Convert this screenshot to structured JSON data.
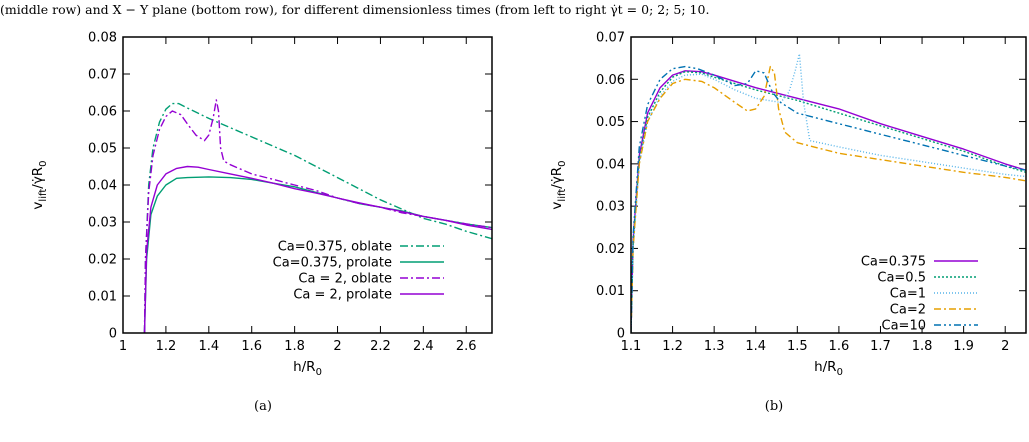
{
  "caption": "(middle row) and X − Y plane (bottom row), for different dimensionless times (from left to right γ̇t = 0; 2; 5; 10.",
  "chart_data": [
    {
      "type": "line",
      "panel_label": "(a)",
      "xlabel": "h/R",
      "xlabel_sub": "0",
      "ylabel_main": "v",
      "ylabel_sub": "lift",
      "ylabel_mid": "/γ̇R",
      "ylabel_sub2": "0",
      "xlim": [
        1.0,
        2.72
      ],
      "ylim": [
        0,
        0.08
      ],
      "xticks": [
        1,
        1.2,
        1.4,
        1.6,
        1.8,
        2,
        2.2,
        2.4,
        2.6
      ],
      "xtick_labels": [
        "1",
        "1.2",
        "1.4",
        "1.6",
        "1.8",
        "2",
        "2.2",
        "2.4",
        "2.6"
      ],
      "yticks": [
        0,
        0.01,
        0.02,
        0.03,
        0.04,
        0.05,
        0.06,
        0.07,
        0.08
      ],
      "ytick_labels": [
        "0",
        "0.01",
        "0.02",
        "0.03",
        "0.04",
        "0.05",
        "0.06",
        "0.07",
        "0.08"
      ],
      "legend_position": "bottom-right",
      "series": [
        {
          "name": "Ca=0.375, oblate",
          "color": "#009e73",
          "dash": "8,3,2,3",
          "x": [
            1.1,
            1.105,
            1.12,
            1.14,
            1.17,
            1.2,
            1.23,
            1.26,
            1.3,
            1.4,
            1.5,
            1.6,
            1.7,
            1.8,
            1.9,
            2.0,
            2.1,
            2.2,
            2.3,
            2.4,
            2.5,
            2.6,
            2.72
          ],
          "y": [
            0,
            0.02,
            0.04,
            0.05,
            0.057,
            0.0605,
            0.062,
            0.062,
            0.0608,
            0.058,
            0.0555,
            0.053,
            0.0505,
            0.048,
            0.045,
            0.042,
            0.039,
            0.036,
            0.0335,
            0.031,
            0.0295,
            0.0275,
            0.0255
          ]
        },
        {
          "name": "Ca=0.375, prolate",
          "color": "#009e73",
          "dash": "",
          "x": [
            1.1,
            1.11,
            1.13,
            1.16,
            1.2,
            1.25,
            1.3,
            1.4,
            1.5,
            1.6,
            1.7,
            1.8,
            1.9,
            2.0,
            2.1,
            2.2,
            2.3,
            2.4,
            2.5,
            2.6,
            2.72
          ],
          "y": [
            0,
            0.02,
            0.032,
            0.037,
            0.04,
            0.0418,
            0.042,
            0.0422,
            0.042,
            0.0415,
            0.0405,
            0.0395,
            0.038,
            0.0365,
            0.035,
            0.034,
            0.033,
            0.0315,
            0.0305,
            0.0295,
            0.0285
          ]
        },
        {
          "name": "Ca = 2, oblate",
          "color": "#9400d3",
          "dash": "8,3,2,3",
          "x": [
            1.1,
            1.105,
            1.12,
            1.14,
            1.17,
            1.2,
            1.23,
            1.27,
            1.3,
            1.34,
            1.38,
            1.4,
            1.42,
            1.435,
            1.445,
            1.455,
            1.47,
            1.5,
            1.6,
            1.7,
            1.8,
            1.9,
            2.0,
            2.1,
            2.2,
            2.3,
            2.4,
            2.5,
            2.6,
            2.72
          ],
          "y": [
            0,
            0.02,
            0.038,
            0.048,
            0.055,
            0.0585,
            0.06,
            0.059,
            0.0565,
            0.0535,
            0.052,
            0.0535,
            0.058,
            0.063,
            0.06,
            0.05,
            0.0465,
            0.0455,
            0.043,
            0.0415,
            0.04,
            0.0385,
            0.0365,
            0.035,
            0.034,
            0.0325,
            0.0315,
            0.0305,
            0.0295,
            0.0285
          ]
        },
        {
          "name": "Ca = 2, prolate",
          "color": "#9400d3",
          "dash": "",
          "x": [
            1.1,
            1.11,
            1.13,
            1.16,
            1.2,
            1.25,
            1.3,
            1.35,
            1.4,
            1.5,
            1.6,
            1.7,
            1.8,
            1.9,
            2.0,
            2.1,
            2.2,
            2.3,
            2.4,
            2.5,
            2.6,
            2.72
          ],
          "y": [
            0,
            0.022,
            0.034,
            0.04,
            0.043,
            0.0445,
            0.045,
            0.0448,
            0.0442,
            0.043,
            0.0418,
            0.0405,
            0.039,
            0.0378,
            0.0365,
            0.0352,
            0.034,
            0.0328,
            0.0315,
            0.0305,
            0.0292,
            0.028
          ]
        }
      ]
    },
    {
      "type": "line",
      "panel_label": "(b)",
      "xlabel": "h/R",
      "xlabel_sub": "0",
      "ylabel_main": "v",
      "ylabel_sub": "lift",
      "ylabel_mid": "/γ̇R",
      "ylabel_sub2": "0",
      "xlim": [
        1.1,
        2.05
      ],
      "ylim": [
        0,
        0.07
      ],
      "xticks": [
        1.1,
        1.2,
        1.3,
        1.4,
        1.5,
        1.6,
        1.7,
        1.8,
        1.9,
        2
      ],
      "xtick_labels": [
        "1.1",
        "1.2",
        "1.3",
        "1.4",
        "1.5",
        "1.6",
        "1.7",
        "1.8",
        "1.9",
        "2"
      ],
      "yticks": [
        0,
        0.01,
        0.02,
        0.03,
        0.04,
        0.05,
        0.06,
        0.07
      ],
      "ytick_labels": [
        "0",
        "0.01",
        "0.02",
        "0.03",
        "0.04",
        "0.05",
        "0.06",
        "0.07"
      ],
      "legend_position": "bottom-right",
      "series": [
        {
          "name": "Ca=0.375",
          "color": "#9400d3",
          "dash": "",
          "x": [
            1.1,
            1.105,
            1.12,
            1.14,
            1.17,
            1.2,
            1.23,
            1.27,
            1.3,
            1.4,
            1.5,
            1.6,
            1.7,
            1.8,
            1.9,
            2.0,
            2.05
          ],
          "y": [
            0,
            0.022,
            0.042,
            0.052,
            0.058,
            0.061,
            0.062,
            0.0618,
            0.061,
            0.058,
            0.0555,
            0.053,
            0.0495,
            0.0465,
            0.0435,
            0.04,
            0.0385
          ]
        },
        {
          "name": "Ca=0.5",
          "color": "#009e73",
          "dash": "2,2",
          "x": [
            1.1,
            1.105,
            1.12,
            1.14,
            1.17,
            1.2,
            1.23,
            1.27,
            1.3,
            1.4,
            1.5,
            1.6,
            1.7,
            1.8,
            1.9,
            2.0,
            2.05
          ],
          "y": [
            0,
            0.021,
            0.041,
            0.051,
            0.057,
            0.0605,
            0.0618,
            0.0615,
            0.0605,
            0.0575,
            0.055,
            0.052,
            0.049,
            0.046,
            0.043,
            0.0395,
            0.038
          ]
        },
        {
          "name": "Ca=1",
          "color": "#56b4e9",
          "dash": "1,2",
          "x": [
            1.1,
            1.105,
            1.12,
            1.14,
            1.17,
            1.2,
            1.23,
            1.27,
            1.3,
            1.35,
            1.4,
            1.43,
            1.46,
            1.48,
            1.495,
            1.505,
            1.515,
            1.53,
            1.6,
            1.7,
            1.8,
            1.9,
            2.0,
            2.05
          ],
          "y": [
            0,
            0.02,
            0.04,
            0.05,
            0.056,
            0.0595,
            0.061,
            0.0612,
            0.06,
            0.0575,
            0.0555,
            0.055,
            0.0545,
            0.057,
            0.062,
            0.066,
            0.0545,
            0.0455,
            0.044,
            0.042,
            0.0405,
            0.039,
            0.0375,
            0.037
          ]
        },
        {
          "name": "Ca=2",
          "color": "#e69f00",
          "dash": "7,3,2,3",
          "x": [
            1.1,
            1.105,
            1.12,
            1.14,
            1.17,
            1.2,
            1.23,
            1.27,
            1.3,
            1.35,
            1.38,
            1.4,
            1.42,
            1.435,
            1.445,
            1.455,
            1.47,
            1.5,
            1.6,
            1.7,
            1.8,
            1.9,
            2.0,
            2.05
          ],
          "y": [
            0,
            0.02,
            0.04,
            0.05,
            0.0555,
            0.059,
            0.06,
            0.0595,
            0.058,
            0.0545,
            0.0525,
            0.053,
            0.056,
            0.063,
            0.0615,
            0.053,
            0.0475,
            0.045,
            0.0425,
            0.041,
            0.0395,
            0.038,
            0.0368,
            0.036
          ]
        },
        {
          "name": "Ca=10",
          "color": "#0072b2",
          "dash": "7,3,2,3,2,3",
          "x": [
            1.1,
            1.105,
            1.12,
            1.14,
            1.17,
            1.2,
            1.23,
            1.26,
            1.3,
            1.35,
            1.38,
            1.4,
            1.42,
            1.44,
            1.46,
            1.5,
            1.6,
            1.7,
            1.8,
            1.9,
            2.0,
            2.05
          ],
          "y": [
            0,
            0.023,
            0.044,
            0.054,
            0.06,
            0.0625,
            0.063,
            0.0625,
            0.061,
            0.0585,
            0.059,
            0.062,
            0.0615,
            0.057,
            0.0545,
            0.052,
            0.0495,
            0.047,
            0.0445,
            0.042,
            0.0395,
            0.0385
          ]
        }
      ]
    }
  ]
}
